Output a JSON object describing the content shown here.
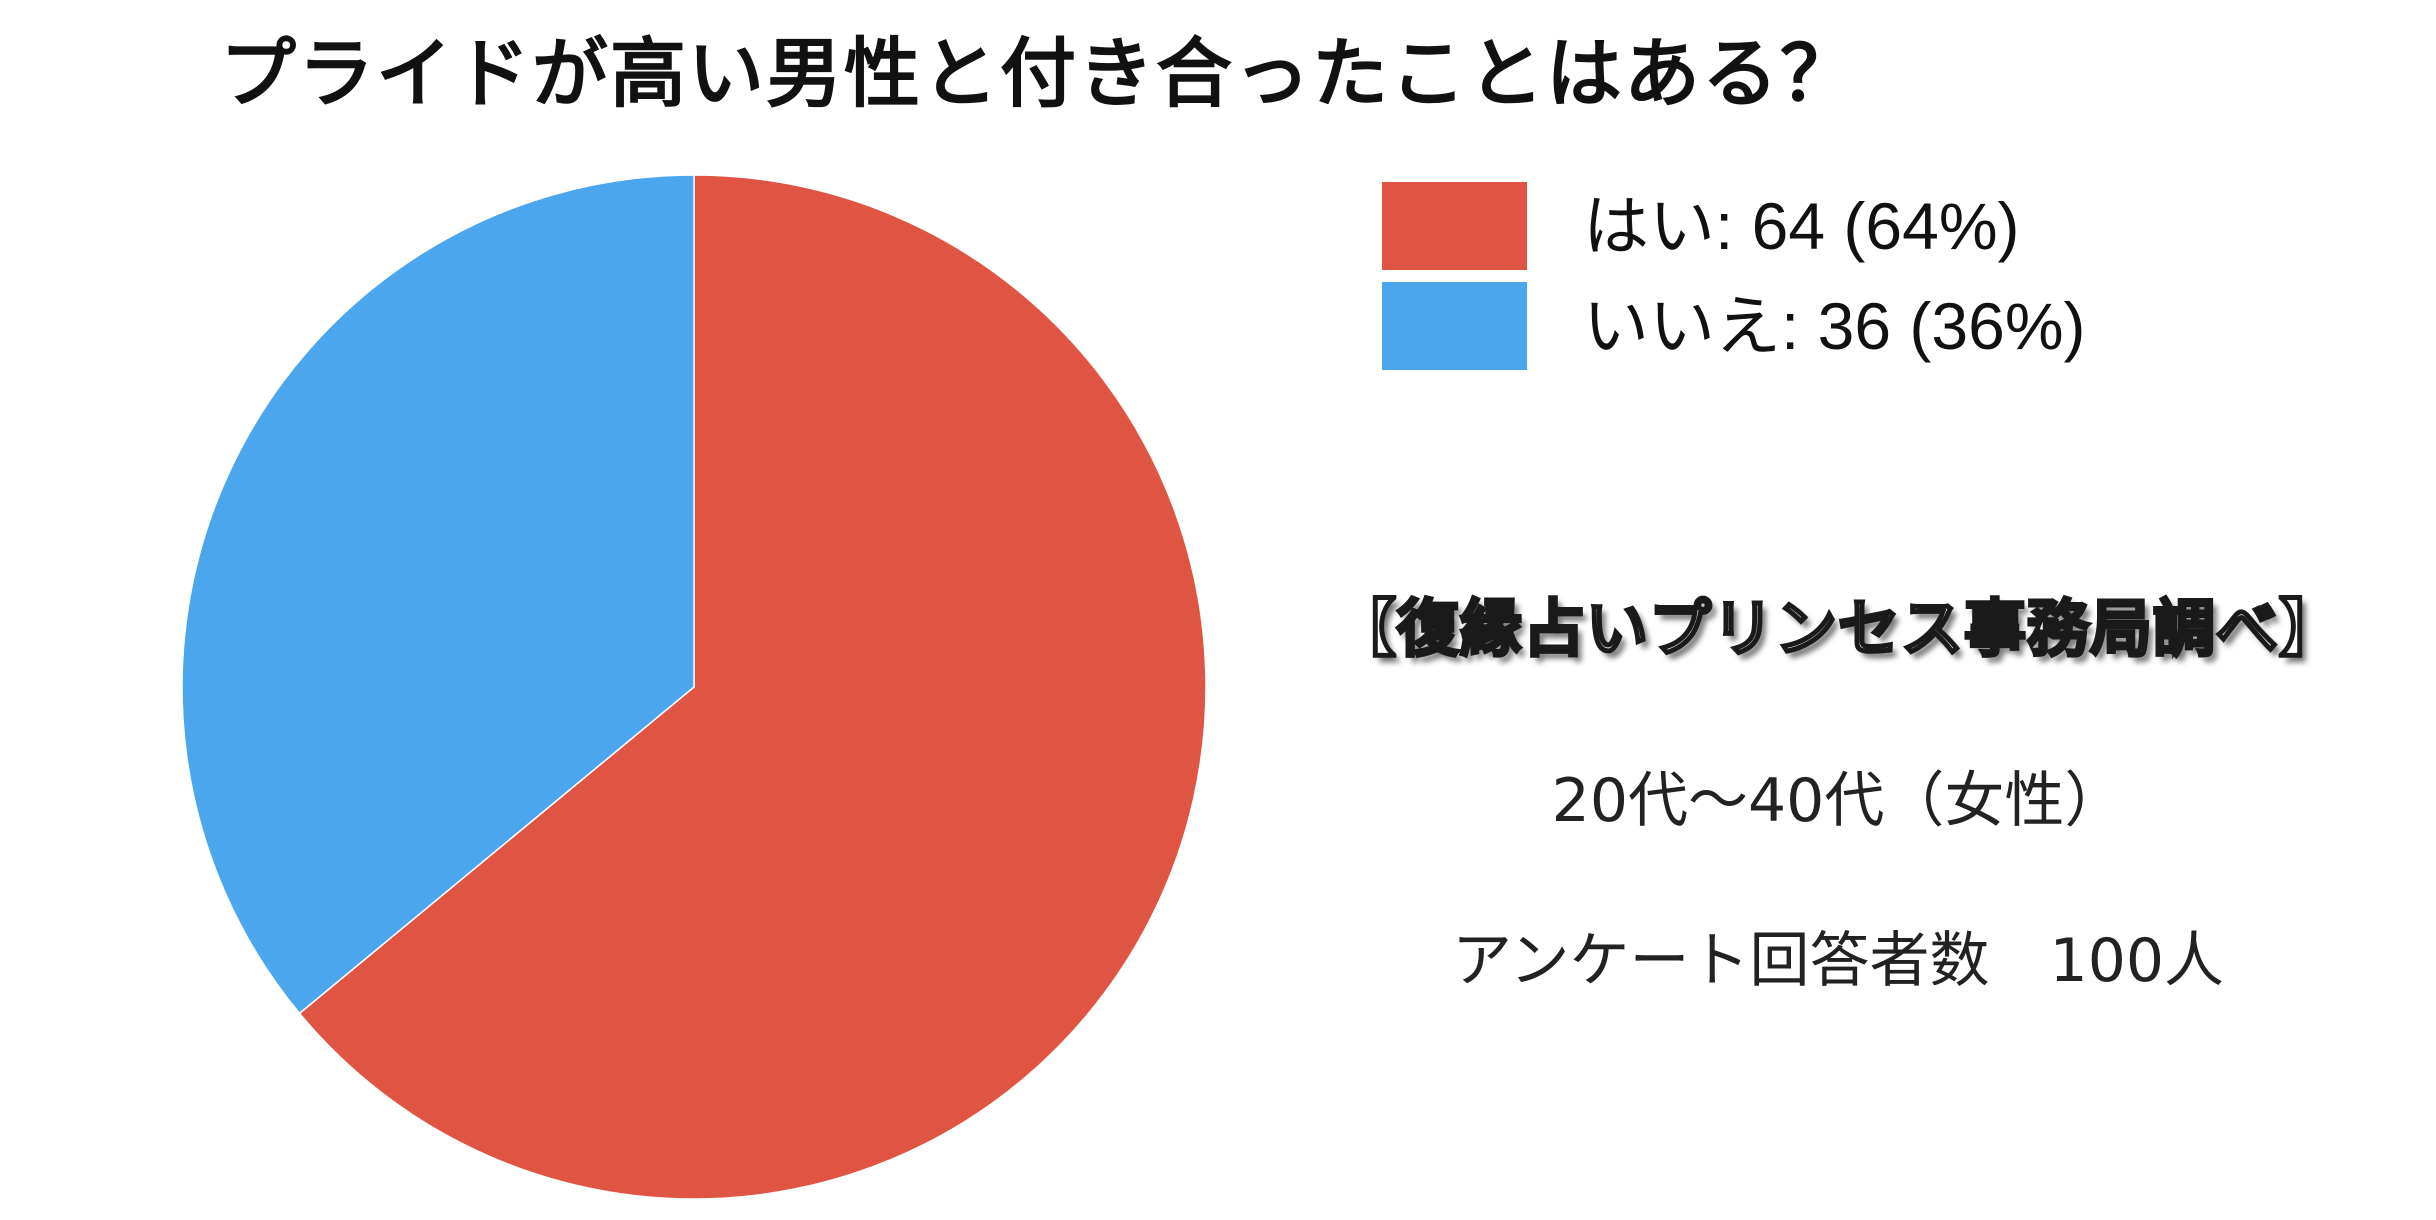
{
  "chart_data": {
    "type": "pie",
    "title": "プライドが高い男性と付き合ったことはある？",
    "slices": [
      {
        "label": "はい: 64 (64%)",
        "category": "はい",
        "value": 64,
        "percent": 64,
        "color": "#E05444"
      },
      {
        "label": "いいえ: 36 (36%)",
        "category": "いいえ",
        "value": 36,
        "percent": 36,
        "color": "#4BA6EE"
      }
    ],
    "legend_position": "top-right",
    "start_angle": "12 o'clock",
    "direction": "clockwise"
  },
  "annotations": {
    "source": "【復縁占いプリンセス事務局調べ】",
    "target": "20代〜40代（女性）",
    "respondents": "アンケート回答者数　100人"
  }
}
